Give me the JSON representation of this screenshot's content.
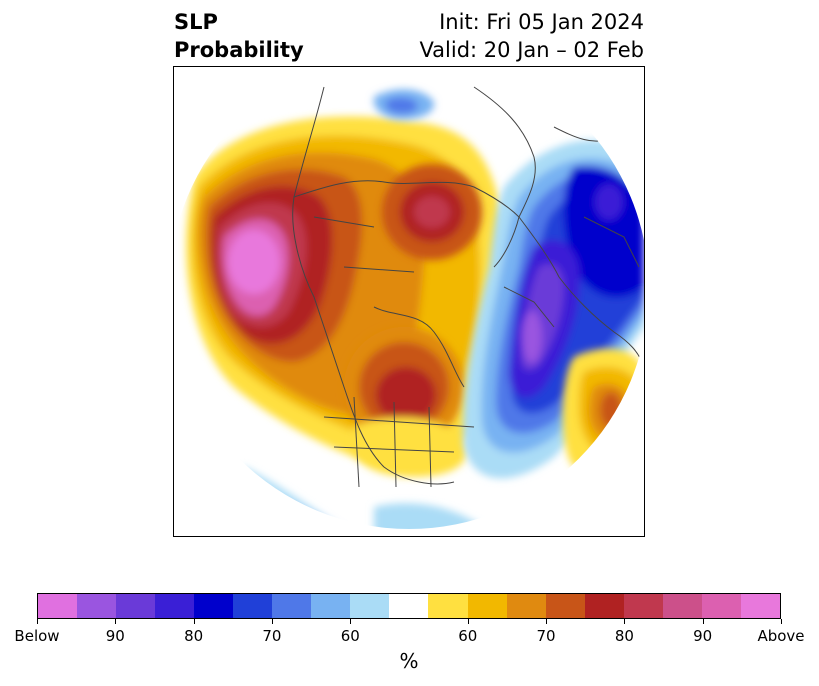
{
  "header": {
    "title_line1": "SLP",
    "title_line2": "Probability",
    "init_label": "Init: Fri 05 Jan 2024",
    "valid_label": "Valid: 20 Jan – 02 Feb"
  },
  "map": {
    "projection": "north-polar-stereographic",
    "features": [
      "coastlines",
      "country-borders",
      "state-borders"
    ],
    "field": "sea-level pressure tercile probability"
  },
  "colorbar": {
    "unit_label": "%",
    "colors": [
      "#e070e0",
      "#9a55e0",
      "#6a3ad8",
      "#3a1fd6",
      "#0000cc",
      "#2040d8",
      "#4f78e8",
      "#78b2f2",
      "#aadcf6",
      "#ffffff",
      "#ffe040",
      "#f2b800",
      "#e08a10",
      "#c85518",
      "#b02222",
      "#c0384e",
      "#cc508a",
      "#dc60b0",
      "#e878dc"
    ],
    "tick_labels": [
      "Below",
      "90",
      "80",
      "70",
      "60",
      "60",
      "70",
      "80",
      "90",
      "Above"
    ],
    "below_categories": [
      "Below",
      "90",
      "80",
      "70",
      "60"
    ],
    "above_categories": [
      "60",
      "70",
      "80",
      "90",
      "Above"
    ]
  }
}
